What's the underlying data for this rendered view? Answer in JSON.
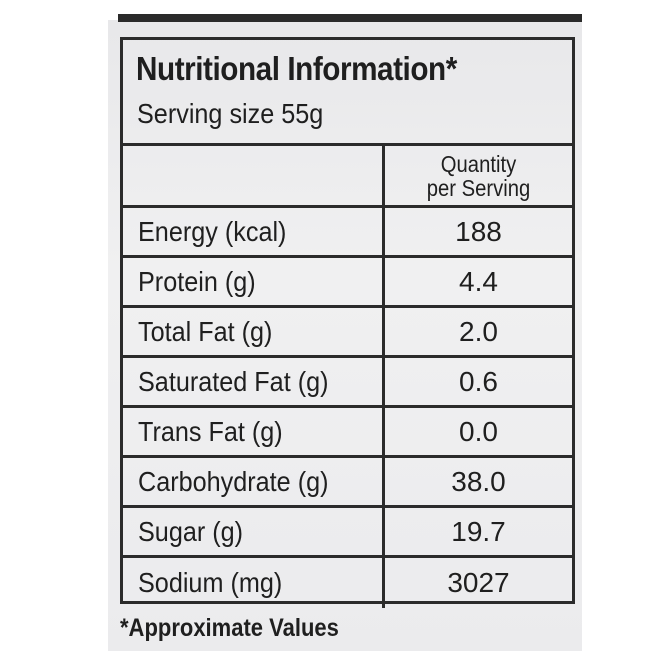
{
  "label": {
    "title": "Nutritional Information*",
    "serving_size": "Serving size 55g",
    "column_header_line1": "Quantity",
    "column_header_line2": "per Serving",
    "rows": [
      {
        "name": "Energy (kcal)",
        "value": "188"
      },
      {
        "name": "Protein (g)",
        "value": "4.4"
      },
      {
        "name": "Total Fat (g)",
        "value": "2.0"
      },
      {
        "name": "Saturated Fat (g)",
        "value": "0.6"
      },
      {
        "name": "Trans Fat (g)",
        "value": "0.0"
      },
      {
        "name": "Carbohydrate (g)",
        "value": "38.0"
      },
      {
        "name": "Sugar (g)",
        "value": "19.7"
      },
      {
        "name": "Sodium (mg)",
        "value": "3027"
      }
    ],
    "footnote": "*Approximate Values"
  }
}
